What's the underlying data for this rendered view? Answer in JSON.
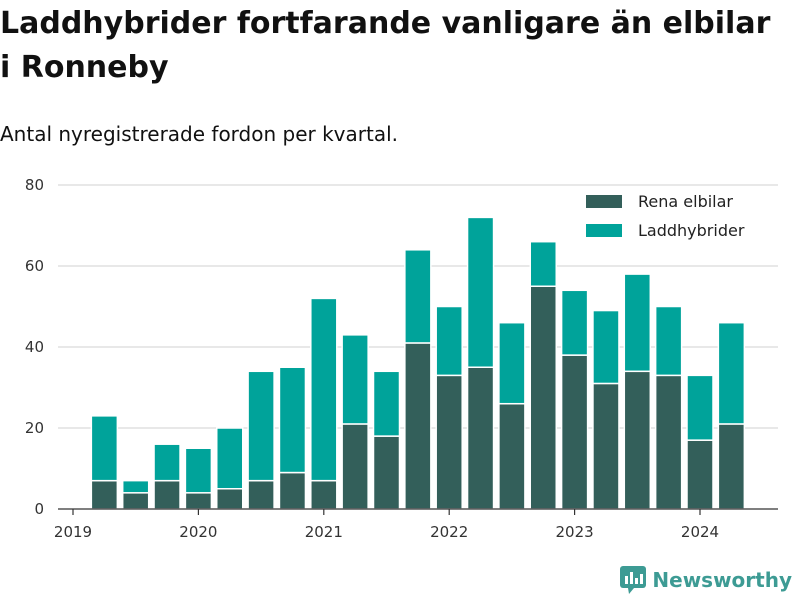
{
  "header": {
    "title": "Laddhybrider fortfarande vanligare än elbilar i Ronneby",
    "subtitle": "Antal nyregistrerade fordon per kvartal."
  },
  "branding": {
    "logo_text": "Newsworthy"
  },
  "colors": {
    "elbilar": "#335f5a",
    "laddhybrider": "#00a39a",
    "grid": "#d9d9d9",
    "logo": "#3d9b94"
  },
  "chart_data": {
    "type": "bar",
    "stacked": true,
    "title": "Laddhybrider fortfarande vanligare än elbilar i Ronneby",
    "subtitle": "Antal nyregistrerade fordon per kvartal.",
    "xlabel": "",
    "ylabel": "",
    "ylim": [
      0,
      80
    ],
    "yticks": [
      0,
      20,
      40,
      60,
      80
    ],
    "xlim": [
      2019.0,
      2024.625
    ],
    "xticks": [
      2019,
      2020,
      2021,
      2022,
      2023,
      2024
    ],
    "xtick_labels": [
      "2019",
      "2020",
      "2021",
      "2022",
      "2023",
      "2024"
    ],
    "legend_position": "top-right",
    "categories": [
      "2019 Q2",
      "2019 Q3",
      "2019 Q4",
      "2020 Q1",
      "2020 Q2",
      "2020 Q3",
      "2020 Q4",
      "2021 Q1",
      "2021 Q2",
      "2021 Q3",
      "2021 Q4",
      "2022 Q1",
      "2022 Q2",
      "2022 Q3",
      "2022 Q4",
      "2023 Q1",
      "2023 Q2",
      "2023 Q3",
      "2023 Q4",
      "2024 Q1",
      "2024 Q2"
    ],
    "x": [
      2019.25,
      2019.5,
      2019.75,
      2020.0,
      2020.25,
      2020.5,
      2020.75,
      2021.0,
      2021.25,
      2021.5,
      2021.75,
      2022.0,
      2022.25,
      2022.5,
      2022.75,
      2023.0,
      2023.25,
      2023.5,
      2023.75,
      2024.0,
      2024.25
    ],
    "series": [
      {
        "name": "Rena elbilar",
        "values": [
          7,
          4,
          7,
          4,
          5,
          7,
          9,
          7,
          21,
          18,
          41,
          33,
          35,
          26,
          55,
          38,
          31,
          34,
          33,
          17,
          21
        ]
      },
      {
        "name": "Laddhybrider",
        "values": [
          16,
          3,
          9,
          11,
          15,
          27,
          26,
          45,
          22,
          16,
          23,
          17,
          37,
          20,
          11,
          16,
          18,
          24,
          17,
          16,
          25
        ]
      }
    ]
  }
}
